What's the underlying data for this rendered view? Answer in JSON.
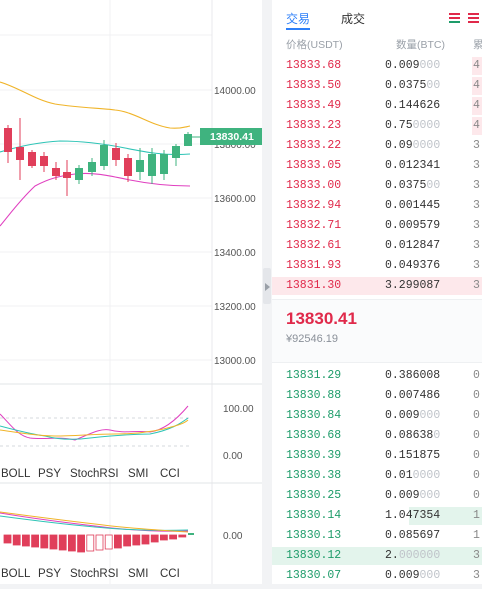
{
  "chart": {
    "price_axis": [
      "14000.00",
      "13800.00",
      "13600.00",
      "13400.00",
      "13200.00",
      "13000.00"
    ],
    "current_price_tag": "13830.41",
    "indicator_axis": [
      "100.00",
      "0.00"
    ],
    "lower_axis": [
      "0.00"
    ],
    "indicator_tabs": [
      "BOLL",
      "PSY",
      "StochRSI",
      "SMI",
      "CCI"
    ],
    "colors": {
      "up": "#3fb37f",
      "down": "#e03e5a",
      "upper_band": "#f0b429",
      "mid_band": "#2ec4b6",
      "lower_band": "#e040c0",
      "tag": "#3fb37f"
    }
  },
  "orderbook": {
    "tabs": [
      {
        "label": "交易",
        "active": true
      },
      {
        "label": "成交",
        "active": false
      }
    ],
    "header": {
      "price": "价格(USDT)",
      "quantity": "数量(BTC)",
      "total": "累"
    },
    "asks": [
      {
        "price": "13833.68",
        "qty": "0.009",
        "qty_zeros": "000",
        "total": "4.",
        "depth": 0.05
      },
      {
        "price": "13833.50",
        "qty": "0.0375",
        "qty_zeros": "00",
        "total": "4.",
        "depth": 0.05
      },
      {
        "price": "13833.49",
        "qty": "0.144626",
        "qty_zeros": "",
        "total": "4.",
        "depth": 0.05
      },
      {
        "price": "13833.23",
        "qty": "0.75",
        "qty_zeros": "0000",
        "total": "4.",
        "depth": 0.05
      },
      {
        "price": "13833.22",
        "qty": "0.09",
        "qty_zeros": "0000",
        "total": "3.",
        "depth": 0
      },
      {
        "price": "13833.05",
        "qty": "0.012341",
        "qty_zeros": "",
        "total": "3.",
        "depth": 0
      },
      {
        "price": "13833.00",
        "qty": "0.0375",
        "qty_zeros": "00",
        "total": "3.",
        "depth": 0
      },
      {
        "price": "13832.94",
        "qty": "0.001445",
        "qty_zeros": "",
        "total": "3.",
        "depth": 0
      },
      {
        "price": "13832.71",
        "qty": "0.009579",
        "qty_zeros": "",
        "total": "3.",
        "depth": 0
      },
      {
        "price": "13832.61",
        "qty": "0.012847",
        "qty_zeros": "",
        "total": "3.",
        "depth": 0
      },
      {
        "price": "13831.93",
        "qty": "0.049376",
        "qty_zeros": "",
        "total": "3.",
        "depth": 0
      },
      {
        "price": "13831.30",
        "qty": "3.299087",
        "qty_zeros": "",
        "total": "3.",
        "depth": 1.0
      }
    ],
    "last_price": "13830.41",
    "last_price_cny": "¥92546.19",
    "bids": [
      {
        "price": "13831.29",
        "qty": "0.386008",
        "qty_zeros": "",
        "total": "0.",
        "depth": 0
      },
      {
        "price": "13830.88",
        "qty": "0.007486",
        "qty_zeros": "",
        "total": "0.",
        "depth": 0
      },
      {
        "price": "13830.84",
        "qty": "0.009",
        "qty_zeros": "000",
        "total": "0.",
        "depth": 0
      },
      {
        "price": "13830.68",
        "qty": "0.08638",
        "qty_zeros": "0",
        "total": "0.",
        "depth": 0
      },
      {
        "price": "13830.39",
        "qty": "0.151875",
        "qty_zeros": "",
        "total": "0.",
        "depth": 0
      },
      {
        "price": "13830.38",
        "qty": "0.01",
        "qty_zeros": "0000",
        "total": "0.",
        "depth": 0
      },
      {
        "price": "13830.25",
        "qty": "0.009",
        "qty_zeros": "000",
        "total": "0.",
        "depth": 0
      },
      {
        "price": "13830.14",
        "qty": "1.047354",
        "qty_zeros": "",
        "total": "1.",
        "depth": 0.35
      },
      {
        "price": "13830.13",
        "qty": "0.085697",
        "qty_zeros": "",
        "total": "1.",
        "depth": 0
      },
      {
        "price": "13830.12",
        "qty": "2.",
        "qty_zeros": "000000",
        "total": "3.",
        "depth": 1.0
      },
      {
        "price": "13830.07",
        "qty": "0.009",
        "qty_zeros": "000",
        "total": "3.",
        "depth": 0
      }
    ]
  }
}
